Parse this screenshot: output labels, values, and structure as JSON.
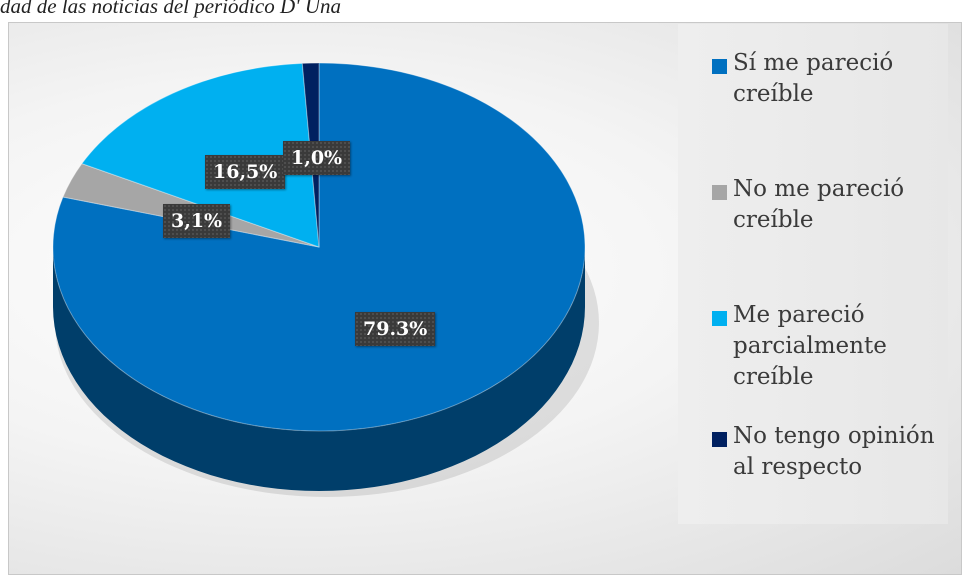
{
  "caption": "dad de las noticias del periódico D' Una",
  "colors": {
    "si": "#0070c0",
    "no": "#a6a6a6",
    "parcial": "#00b0f0",
    "sin_opinion": "#002060"
  },
  "chart_data": {
    "type": "pie",
    "title": "",
    "slices": [
      {
        "name": "Sí me pareció creíble",
        "value": 79.3,
        "label": "79.3%"
      },
      {
        "name": "No me pareció creíble",
        "value": 3.1,
        "label": "3,1%"
      },
      {
        "name": "Me pareció parcialmente creíble",
        "value": 16.5,
        "label": "16,5%"
      },
      {
        "name": "No tengo opinión al respecto",
        "value": 1.0,
        "label": "1,0%"
      }
    ],
    "legend_position": "right"
  },
  "legend": [
    {
      "label": "Sí me pareció creíble"
    },
    {
      "label": "No me pareció creíble"
    },
    {
      "label": "Me pareció parcialmente creíble"
    },
    {
      "label": "No tengo opinión al respecto"
    }
  ]
}
